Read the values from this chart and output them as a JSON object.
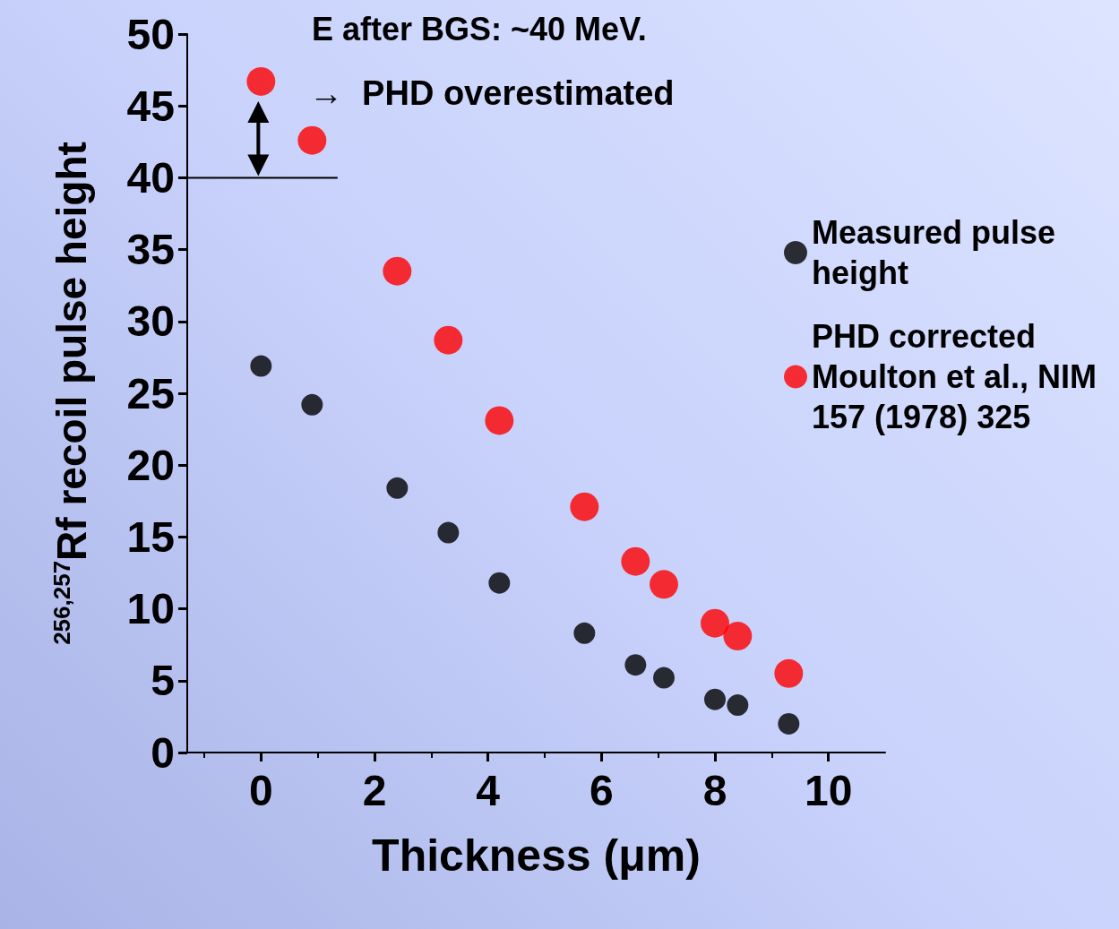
{
  "chart_data": {
    "type": "scatter",
    "xlabel": "Thickness (μm)",
    "ylabel": "$^{256,257}$Rf recoil pulse height",
    "xlim": [
      -1.3,
      11
    ],
    "xticks": [
      0,
      2,
      4,
      6,
      8,
      10
    ],
    "ylim": [
      0,
      50
    ],
    "yticks": [
      0,
      5,
      10,
      15,
      20,
      25,
      30,
      35,
      40,
      45,
      50
    ],
    "grid": false,
    "legend": "right",
    "marker": "circle",
    "annotations": [
      "E after BGS: ~40 MeV.",
      "→  PHD overestimated"
    ],
    "series": [
      {
        "name": "Measured pulse height",
        "color": "#000000",
        "x": [
          0,
          0.9,
          2.4,
          3.3,
          4.2,
          5.7,
          6.6,
          7.1,
          8.0,
          8.4,
          9.3
        ],
        "values": [
          26.9,
          24.2,
          18.4,
          15.3,
          11.8,
          8.3,
          6.1,
          5.2,
          3.7,
          3.3,
          2.0
        ]
      },
      {
        "name": "PHD corrected Moulton et al., NIM 157 (1978) 325",
        "color": "#ff0000",
        "x": [
          0,
          0.9,
          2.4,
          3.3,
          4.2,
          5.7,
          6.6,
          7.1,
          8.0,
          8.4,
          9.3
        ],
        "values": [
          46.7,
          42.6,
          33.5,
          28.7,
          23.1,
          17.1,
          13.3,
          11.7,
          9.0,
          8.1,
          5.5
        ]
      },
      {
        "type": "line",
        "color": "#000000",
        "marker": "none",
        "x": [
          -1.3,
          1.35
        ],
        "values": [
          40,
          40
        ]
      }
    ]
  }
}
